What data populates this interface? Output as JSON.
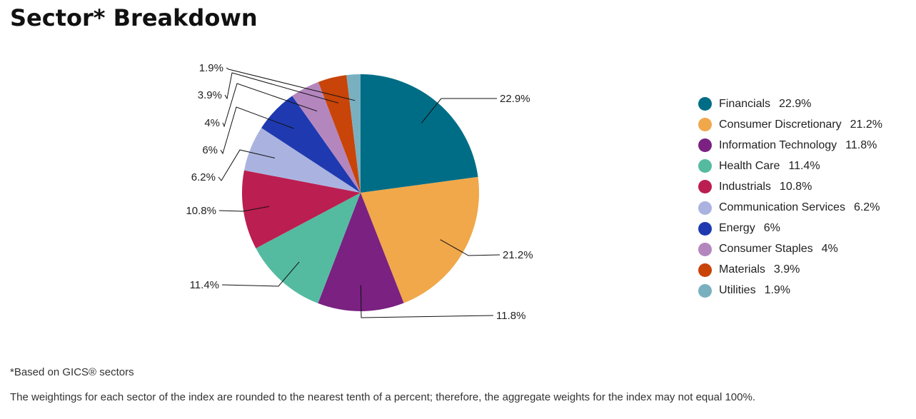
{
  "title": "Sector* Breakdown",
  "footnote": "*Based on GICS® sectors",
  "disclaimer": "The weightings for each sector of the index are rounded to the nearest tenth of a percent; therefore, the aggregate weights for the index may not equal 100%.",
  "chart_data": {
    "type": "pie",
    "title": "Sector* Breakdown",
    "legend_position": "right",
    "slices": [
      {
        "name": "Financials",
        "value": 22.9,
        "label": "22.9%",
        "color": "#006d87"
      },
      {
        "name": "Consumer Discretionary",
        "value": 21.2,
        "label": "21.2%",
        "color": "#f0a84a"
      },
      {
        "name": "Information Technology",
        "value": 11.8,
        "label": "11.8%",
        "color": "#7a2182"
      },
      {
        "name": "Health Care",
        "value": 11.4,
        "label": "11.4%",
        "color": "#54bba0"
      },
      {
        "name": "Industrials",
        "value": 10.8,
        "label": "10.8%",
        "color": "#bb1e50"
      },
      {
        "name": "Communication Services",
        "value": 6.2,
        "label": "6.2%",
        "color": "#aab3e0"
      },
      {
        "name": "Energy",
        "value": 6,
        "label": "6%",
        "color": "#1f3ab0"
      },
      {
        "name": "Consumer Staples",
        "value": 4,
        "label": "4%",
        "color": "#b486be"
      },
      {
        "name": "Materials",
        "value": 3.9,
        "label": "3.9%",
        "color": "#c84408"
      },
      {
        "name": "Utilities",
        "value": 1.9,
        "label": "1.9%",
        "color": "#79b0c0"
      }
    ]
  }
}
